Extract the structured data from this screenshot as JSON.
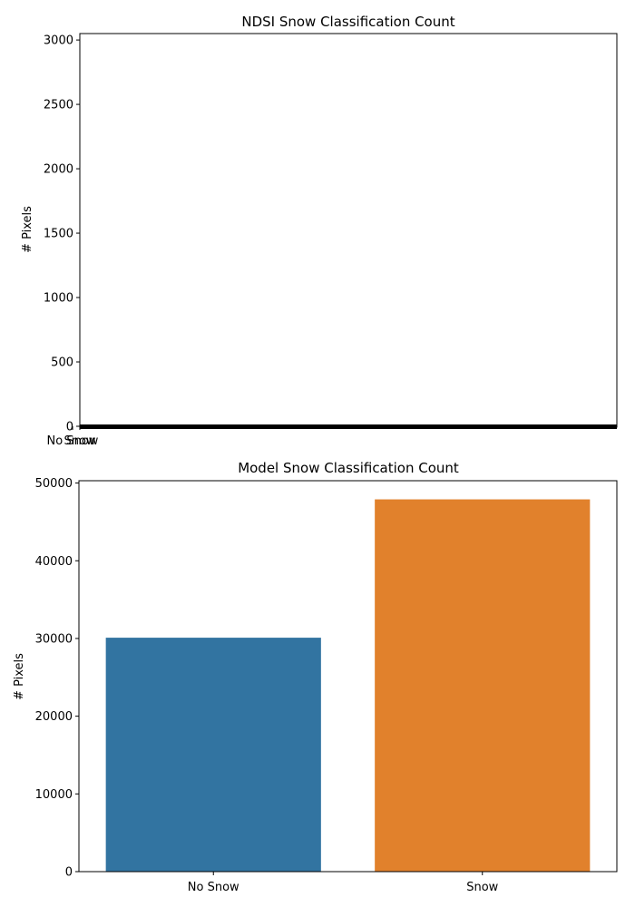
{
  "chart_data": [
    {
      "type": "bar",
      "title": "NDSI Snow Classification Count",
      "xlabel": "",
      "ylabel": "# Pixels",
      "categories": [
        "No Snow",
        "Snow"
      ],
      "values": [
        0,
        0
      ],
      "ylim": [
        0,
        3050
      ],
      "yticks": [
        0,
        500,
        1000,
        1500,
        2000,
        2500,
        3000
      ],
      "grid": false,
      "legend": "none",
      "colors": [
        "#1f77b4",
        "#ff7f0e"
      ]
    },
    {
      "type": "bar",
      "title": "Model Snow Classification Count",
      "xlabel": "",
      "ylabel": "# Pixels",
      "categories": [
        "No Snow",
        "Snow"
      ],
      "values": [
        30100,
        47900
      ],
      "ylim": [
        0,
        50300
      ],
      "yticks": [
        0,
        10000,
        20000,
        30000,
        40000,
        50000
      ],
      "grid": false,
      "legend": "none",
      "colors": [
        "#3274a1",
        "#e1812c"
      ]
    }
  ]
}
